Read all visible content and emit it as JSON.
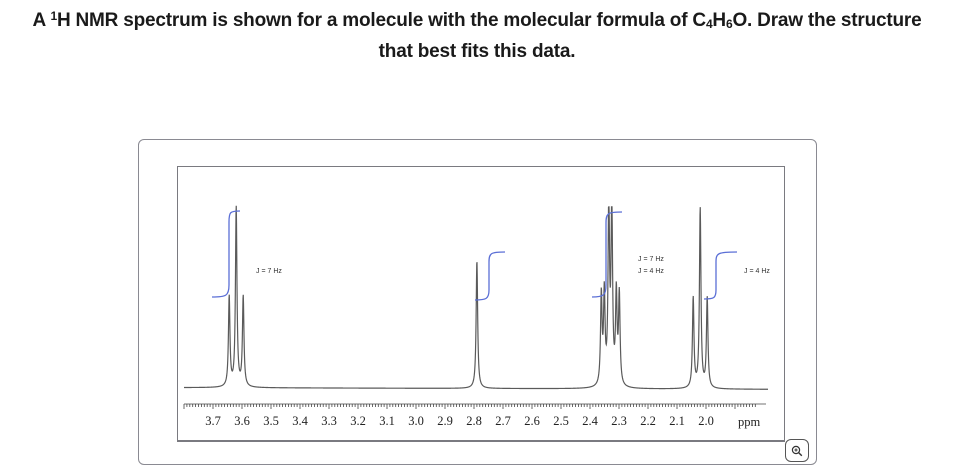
{
  "question": {
    "line1_prefix": "A ",
    "sup": "1",
    "line1_mid": "H NMR spectrum is shown for a molecule with the molecular formula of C",
    "sub_c": "4",
    "h": "H",
    "sub_h": "6",
    "line1_suffix": "O. Draw the structure",
    "line2": "that best fits this data."
  },
  "zoom_button": {
    "icon": "zoom-in-icon"
  },
  "colors": {
    "spectrum": "#5a5a5a",
    "integral": "#5b6fd6",
    "frame": "#8a8a92"
  },
  "chart_data": {
    "type": "line",
    "title": "1H NMR spectrum",
    "xlabel": "ppm",
    "ylabel": "",
    "xlim": [
      3.78,
      1.84
    ],
    "x_reversed": true,
    "grid": false,
    "tick_labels": [
      "3.7",
      "3.6",
      "3.5",
      "3.4",
      "3.3",
      "3.2",
      "3.1",
      "3.0",
      "2.9",
      "2.8",
      "2.7",
      "2.6",
      "2.5",
      "2.4",
      "2.3",
      "2.2",
      "2.1",
      "2.0"
    ],
    "peaks": [
      {
        "shift_ppm": 3.62,
        "multiplicity": "triplet",
        "annotation": "J = 7 Hz",
        "relative_heights": [
          0.5,
          1.0,
          0.5
        ],
        "integral_relative": 2
      },
      {
        "shift_ppm": 2.79,
        "multiplicity": "singlet",
        "annotation": "",
        "relative_heights": [
          0.71
        ],
        "integral_relative": 1
      },
      {
        "shift_ppm": 2.33,
        "multiplicity": "triplet of doublets",
        "annotation": "J = 7 Hz, J = 4 Hz",
        "annotation_lines": [
          "J = 7 Hz",
          "J = 4 Hz"
        ],
        "relative_heights": [
          0.5,
          0.5,
          1.0,
          1.0,
          0.5,
          0.5
        ],
        "integral_relative": 2
      },
      {
        "shift_ppm": 2.02,
        "multiplicity": "triplet",
        "annotation": "J = 4 Hz",
        "relative_heights": [
          0.5,
          1.0,
          0.5
        ],
        "integral_relative": 1
      }
    ],
    "annotations": [
      "J = 7 Hz",
      "J = 7 Hz",
      "J = 4 Hz",
      "J = 4 Hz"
    ]
  }
}
